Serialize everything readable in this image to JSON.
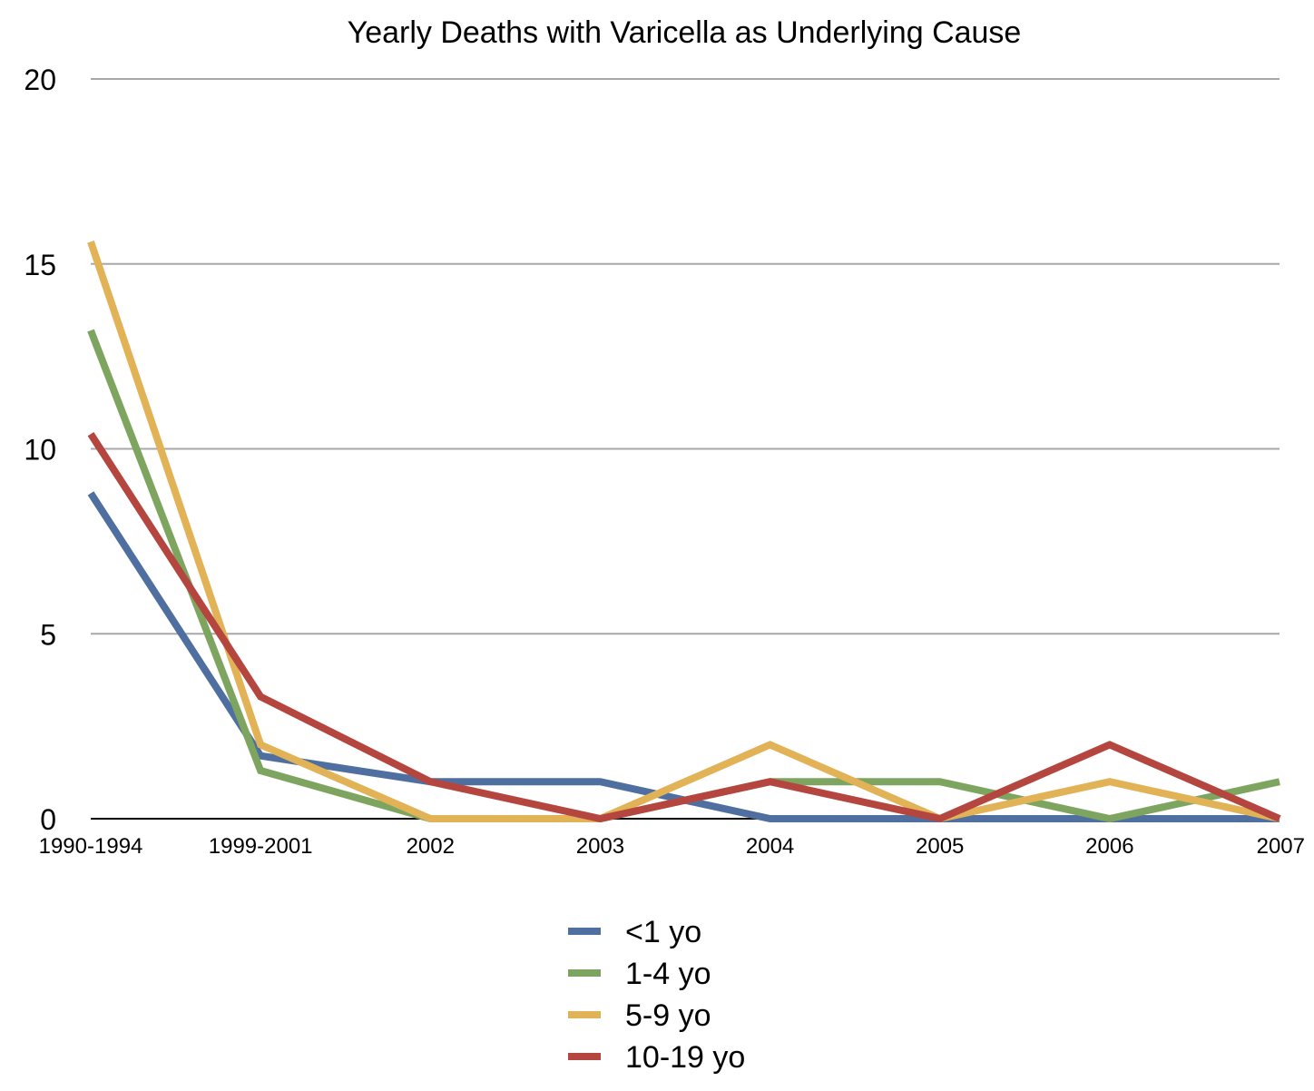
{
  "chart_data": {
    "type": "line",
    "title": "Yearly Deaths with Varicella as Underlying Cause",
    "xlabel": "",
    "ylabel": "",
    "ylim": [
      0,
      20
    ],
    "yticks": [
      "0",
      "5",
      "10",
      "15",
      "20"
    ],
    "grid": true,
    "legend_position": "bottom-center",
    "categories": [
      "1990-1994",
      "1999-2001",
      "2002",
      "2003",
      "2004",
      "2005",
      "2006",
      "2007"
    ],
    "series": [
      {
        "name": "<1 yo",
        "color": "#4f6fa0",
        "values": [
          8.8,
          1.7,
          1,
          1,
          0,
          0,
          0,
          0
        ]
      },
      {
        "name": "1-4 yo",
        "color": "#7da55f",
        "values": [
          13.2,
          1.3,
          0,
          0,
          1,
          1,
          0,
          1
        ]
      },
      {
        "name": "5-9 yo",
        "color": "#e2b256",
        "values": [
          15.6,
          2.0,
          0,
          0,
          2,
          0,
          1,
          0
        ]
      },
      {
        "name": "10-19 yo",
        "color": "#b5463f",
        "values": [
          10.4,
          3.3,
          1,
          0,
          1,
          0,
          2,
          0
        ]
      }
    ]
  }
}
